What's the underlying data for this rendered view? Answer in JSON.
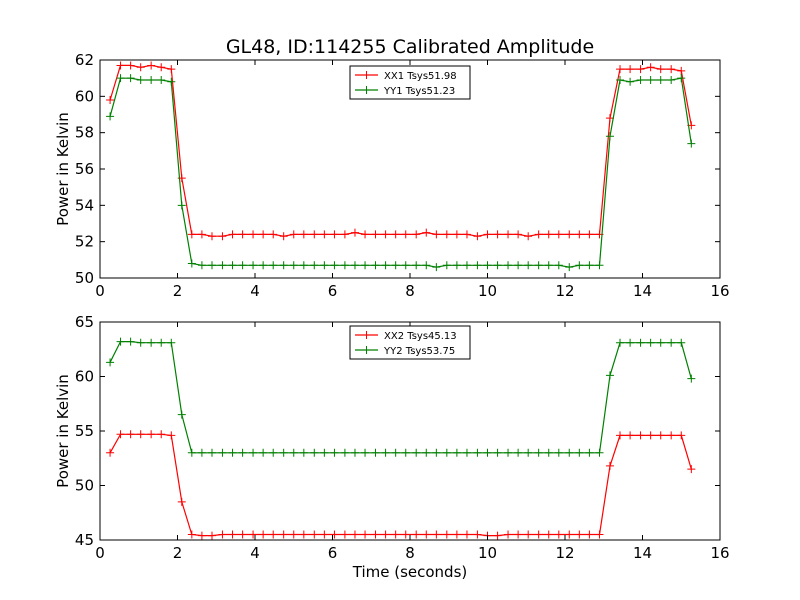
{
  "chart_data": [
    {
      "type": "line",
      "title": "GL48, ID:114255 Calibrated Amplitude",
      "xlabel": "",
      "ylabel": "Power in Kelvin",
      "xlim": [
        0,
        16
      ],
      "ylim": [
        50,
        62
      ],
      "xticks": [
        0,
        2,
        4,
        6,
        8,
        10,
        12,
        14,
        16
      ],
      "yticks": [
        50,
        52,
        54,
        56,
        58,
        60,
        62
      ],
      "legend_position": "top-center",
      "grid": false,
      "x": [
        0.26,
        0.53,
        0.79,
        1.05,
        1.32,
        1.58,
        1.84,
        2.11,
        2.37,
        2.63,
        2.89,
        3.16,
        3.42,
        3.68,
        3.95,
        4.21,
        4.47,
        4.74,
        5.0,
        5.26,
        5.53,
        5.79,
        6.05,
        6.32,
        6.58,
        6.84,
        7.11,
        7.37,
        7.63,
        7.89,
        8.16,
        8.42,
        8.68,
        8.95,
        9.21,
        9.47,
        9.74,
        10.0,
        10.26,
        10.53,
        10.79,
        11.05,
        11.32,
        11.58,
        11.84,
        12.11,
        12.37,
        12.63,
        12.89,
        13.16,
        13.42,
        13.68,
        13.95,
        14.21,
        14.47,
        14.74,
        15.0,
        15.26
      ],
      "series": [
        {
          "name": "XX1 Tsys51.98",
          "color": "#ff0000",
          "values": [
            59.8,
            61.7,
            61.7,
            61.6,
            61.7,
            61.6,
            61.5,
            55.5,
            52.4,
            52.4,
            52.3,
            52.3,
            52.4,
            52.4,
            52.4,
            52.4,
            52.4,
            52.3,
            52.4,
            52.4,
            52.4,
            52.4,
            52.4,
            52.4,
            52.5,
            52.4,
            52.4,
            52.4,
            52.4,
            52.4,
            52.4,
            52.5,
            52.4,
            52.4,
            52.4,
            52.4,
            52.3,
            52.4,
            52.4,
            52.4,
            52.4,
            52.3,
            52.4,
            52.4,
            52.4,
            52.4,
            52.4,
            52.4,
            52.4,
            58.8,
            61.5,
            61.5,
            61.5,
            61.6,
            61.5,
            61.5,
            61.4,
            58.4
          ]
        },
        {
          "name": "YY1 Tsys51.23",
          "color": "#008000",
          "values": [
            58.9,
            61.0,
            61.0,
            60.9,
            60.9,
            60.9,
            60.8,
            54.0,
            50.8,
            50.7,
            50.7,
            50.7,
            50.7,
            50.7,
            50.7,
            50.7,
            50.7,
            50.7,
            50.7,
            50.7,
            50.7,
            50.7,
            50.7,
            50.7,
            50.7,
            50.7,
            50.7,
            50.7,
            50.7,
            50.7,
            50.7,
            50.7,
            50.6,
            50.7,
            50.7,
            50.7,
            50.7,
            50.7,
            50.7,
            50.7,
            50.7,
            50.7,
            50.7,
            50.7,
            50.7,
            50.6,
            50.7,
            50.7,
            50.7,
            57.8,
            60.9,
            60.8,
            60.9,
            60.9,
            60.9,
            60.9,
            61.0,
            57.4
          ]
        }
      ]
    },
    {
      "type": "line",
      "title": "",
      "xlabel": "Time (seconds)",
      "ylabel": "Power in Kelvin",
      "xlim": [
        0,
        16
      ],
      "ylim": [
        45,
        65
      ],
      "xticks": [
        0,
        2,
        4,
        6,
        8,
        10,
        12,
        14,
        16
      ],
      "yticks": [
        45,
        50,
        55,
        60,
        65
      ],
      "legend_position": "top-center",
      "grid": false,
      "x": [
        0.26,
        0.53,
        0.79,
        1.05,
        1.32,
        1.58,
        1.84,
        2.11,
        2.37,
        2.63,
        2.89,
        3.16,
        3.42,
        3.68,
        3.95,
        4.21,
        4.47,
        4.74,
        5.0,
        5.26,
        5.53,
        5.79,
        6.05,
        6.32,
        6.58,
        6.84,
        7.11,
        7.37,
        7.63,
        7.89,
        8.16,
        8.42,
        8.68,
        8.95,
        9.21,
        9.47,
        9.74,
        10.0,
        10.26,
        10.53,
        10.79,
        11.05,
        11.32,
        11.58,
        11.84,
        12.11,
        12.37,
        12.63,
        12.89,
        13.16,
        13.42,
        13.68,
        13.95,
        14.21,
        14.47,
        14.74,
        15.0,
        15.26
      ],
      "series": [
        {
          "name": "XX2 Tsys45.13",
          "color": "#ff0000",
          "values": [
            53.0,
            54.7,
            54.7,
            54.7,
            54.7,
            54.7,
            54.6,
            48.5,
            45.5,
            45.4,
            45.4,
            45.5,
            45.5,
            45.5,
            45.5,
            45.5,
            45.5,
            45.5,
            45.5,
            45.5,
            45.5,
            45.5,
            45.5,
            45.5,
            45.5,
            45.5,
            45.5,
            45.5,
            45.5,
            45.5,
            45.5,
            45.5,
            45.5,
            45.5,
            45.5,
            45.5,
            45.5,
            45.4,
            45.4,
            45.5,
            45.5,
            45.5,
            45.5,
            45.5,
            45.5,
            45.5,
            45.5,
            45.5,
            45.5,
            51.8,
            54.6,
            54.6,
            54.6,
            54.6,
            54.6,
            54.6,
            54.6,
            51.5
          ]
        },
        {
          "name": "YY2 Tsys53.75",
          "color": "#008000",
          "values": [
            61.3,
            63.2,
            63.2,
            63.1,
            63.1,
            63.1,
            63.1,
            56.5,
            53.0,
            53.0,
            53.0,
            53.0,
            53.0,
            53.0,
            53.0,
            53.0,
            53.0,
            53.0,
            53.0,
            53.0,
            53.0,
            53.0,
            53.0,
            53.0,
            53.0,
            53.0,
            53.0,
            53.0,
            53.0,
            53.0,
            53.0,
            53.0,
            53.0,
            53.0,
            53.0,
            53.0,
            53.0,
            53.0,
            53.0,
            53.0,
            53.0,
            53.0,
            53.0,
            53.0,
            53.0,
            53.0,
            53.0,
            53.0,
            53.0,
            60.1,
            63.1,
            63.1,
            63.1,
            63.1,
            63.1,
            63.1,
            63.1,
            59.8
          ]
        }
      ]
    }
  ]
}
